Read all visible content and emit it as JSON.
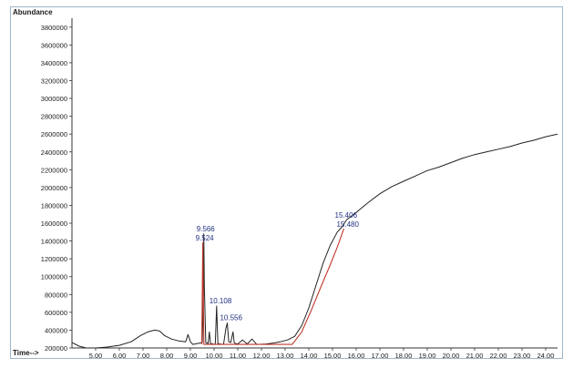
{
  "chart_data": {
    "type": "line",
    "ylabel": "Abundance",
    "xlabel": "Time-->",
    "xlim": [
      4.0,
      24.5
    ],
    "ylim": [
      200000,
      3900000
    ],
    "x_ticks": [
      "5.00",
      "6.00",
      "7.00",
      "8.00",
      "9.00",
      "10.00",
      "11.00",
      "12.00",
      "13.00",
      "14.00",
      "15.00",
      "16.00",
      "17.00",
      "18.00",
      "19.00",
      "20.00",
      "21.00",
      "22.00",
      "23.00",
      "24.00"
    ],
    "y_ticks": [
      "200000",
      "400000",
      "600000",
      "800000",
      "1000000",
      "1200000",
      "1400000",
      "1600000",
      "1800000",
      "2000000",
      "2200000",
      "2400000",
      "2600000",
      "2800000",
      "3000000",
      "3200000",
      "3400000",
      "3600000",
      "3800000"
    ],
    "series": [
      {
        "color": "#222222",
        "x": [
          4.0,
          4.3,
          4.6,
          5.0,
          5.5,
          6.0,
          6.5,
          6.9,
          7.2,
          7.5,
          7.7,
          7.9,
          8.2,
          8.5,
          8.8,
          8.9,
          9.0,
          9.1,
          9.3,
          9.5,
          9.55,
          9.566,
          9.59,
          9.65,
          9.75,
          9.8,
          9.85,
          9.95,
          10.05,
          10.108,
          10.16,
          10.25,
          10.4,
          10.5,
          10.556,
          10.62,
          10.7,
          10.8,
          10.85,
          10.9,
          11.0,
          11.2,
          11.4,
          11.6,
          11.8,
          12.2,
          12.5,
          12.8,
          13.1,
          13.4,
          13.7,
          14.0,
          14.3,
          14.6,
          14.9,
          15.2,
          15.406,
          15.6,
          16.0,
          16.5,
          17.0,
          17.5,
          18.0,
          18.5,
          19.0,
          19.5,
          20.0,
          20.5,
          21.0,
          21.5,
          22.0,
          22.5,
          23.0,
          23.5,
          24.0,
          24.5
        ],
        "y": [
          260000,
          220000,
          200000,
          200000,
          210000,
          230000,
          270000,
          340000,
          380000,
          400000,
          390000,
          340000,
          300000,
          280000,
          270000,
          350000,
          270000,
          240000,
          250000,
          260000,
          800000,
          1480000,
          900000,
          260000,
          250000,
          380000,
          250000,
          245000,
          240000,
          670000,
          250000,
          245000,
          240000,
          420000,
          480000,
          270000,
          260000,
          380000,
          260000,
          250000,
          245000,
          290000,
          245000,
          300000,
          240000,
          245000,
          255000,
          270000,
          290000,
          330000,
          450000,
          650000,
          900000,
          1150000,
          1350000,
          1500000,
          1560000,
          1640000,
          1720000,
          1830000,
          1930000,
          2010000,
          2070000,
          2130000,
          2190000,
          2230000,
          2280000,
          2330000,
          2370000,
          2400000,
          2430000,
          2460000,
          2500000,
          2530000,
          2570000,
          2600000
        ]
      },
      {
        "color": "#c0392b",
        "x": [
          9.48,
          9.524,
          9.57,
          13.3,
          13.7,
          14.1,
          14.5,
          14.9,
          15.2,
          15.48
        ],
        "y": [
          240000,
          1380000,
          240000,
          240000,
          380000,
          620000,
          880000,
          1130000,
          1330000,
          1540000
        ]
      }
    ],
    "annotations": [
      {
        "text": "9.566",
        "x": 9.566,
        "y": 1480000
      },
      {
        "text": "9.524",
        "x": 9.524,
        "y": 1380000
      },
      {
        "text": "10.108",
        "x": 10.108,
        "y": 670000
      },
      {
        "text": "10.556",
        "x": 10.556,
        "y": 480000
      },
      {
        "text": "15.406",
        "x": 15.406,
        "y": 1630000
      },
      {
        "text": "15.480",
        "x": 15.48,
        "y": 1540000
      }
    ]
  }
}
